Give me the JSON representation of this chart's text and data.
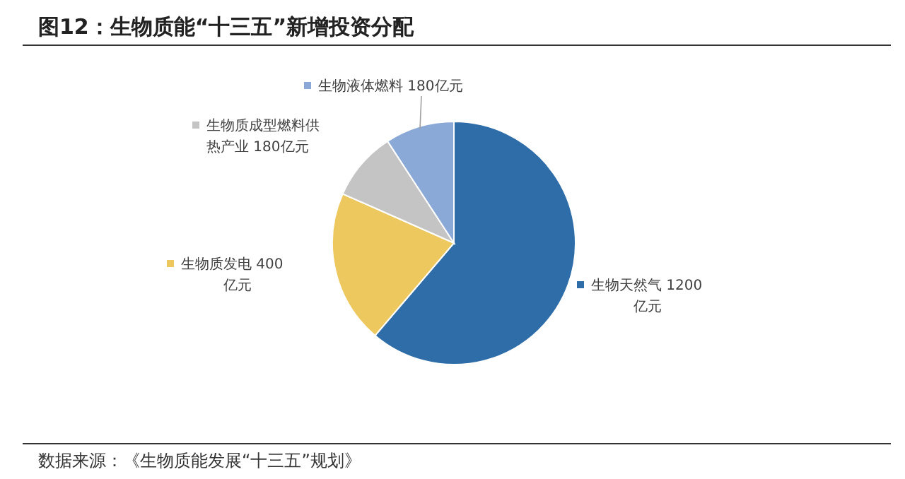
{
  "chart_data": {
    "type": "pie",
    "title": "图12：生物质能“十三五”新增投资分配",
    "categories": [
      "生物天然气",
      "生物质发电",
      "生物质成型燃料供热产业",
      "生物液体燃料"
    ],
    "values": [
      1200,
      400,
      180,
      180
    ],
    "value_labels": [
      "1200亿元",
      "400亿元",
      "180亿元",
      "180亿元"
    ],
    "colors": [
      "#2e6da8",
      "#ecc85e",
      "#c4c4c4",
      "#8aa9d6"
    ],
    "legend": "left",
    "annotations": [
      "数据来源：《生物质能发展“十三五”规划》"
    ]
  }
}
